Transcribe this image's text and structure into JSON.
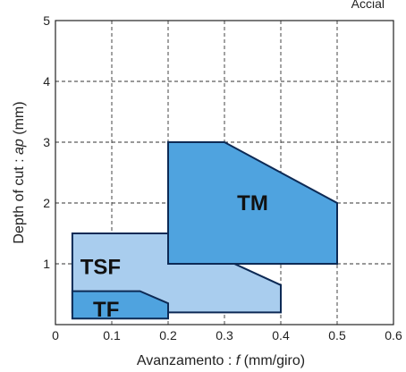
{
  "corner_text": "Accial",
  "chart_data": {
    "type": "area",
    "xlabel_prefix": "Avanzamento : ",
    "xlabel_var": "f",
    "xlabel_suffix": " (mm/giro)",
    "ylabel_prefix": "Depth of cut : ",
    "ylabel_var": "ap",
    "ylabel_suffix": " (mm)",
    "xlim": [
      0,
      0.6
    ],
    "ylim": [
      0,
      5
    ],
    "xticks": [
      "0",
      "0.1",
      "0.2",
      "0.3",
      "0.4",
      "0.5",
      "0.6"
    ],
    "yticks": [
      "1",
      "2",
      "3",
      "4",
      "5"
    ],
    "grid": true,
    "colors": {
      "light": "#a9cdee",
      "medium": "#4fa3df",
      "overlap": "#2b96d8",
      "outline": "#0d2a55"
    },
    "regions": [
      {
        "name": "TSF",
        "color": "light",
        "points": [
          [
            0.03,
            0.2
          ],
          [
            0.03,
            1.5
          ],
          [
            0.2,
            1.5
          ],
          [
            0.4,
            0.65
          ],
          [
            0.4,
            0.2
          ]
        ],
        "label_pos": [
          0.08,
          0.95
        ]
      },
      {
        "name": "TM",
        "color": "medium",
        "points": [
          [
            0.2,
            1.0
          ],
          [
            0.2,
            3.0
          ],
          [
            0.3,
            3.0
          ],
          [
            0.5,
            2.0
          ],
          [
            0.5,
            1.0
          ]
        ],
        "label_pos": [
          0.35,
          2.0
        ]
      },
      {
        "name": "TF",
        "color": "medium",
        "points": [
          [
            0.03,
            0.1
          ],
          [
            0.03,
            0.55
          ],
          [
            0.15,
            0.55
          ],
          [
            0.2,
            0.35
          ],
          [
            0.2,
            0.1
          ]
        ],
        "label_pos": [
          0.09,
          0.25
        ]
      }
    ],
    "overlap": {
      "color": "overlap",
      "points": [
        [
          0.2,
          1.0
        ],
        [
          0.2,
          1.5
        ],
        [
          0.32,
          1.0
        ]
      ]
    }
  }
}
